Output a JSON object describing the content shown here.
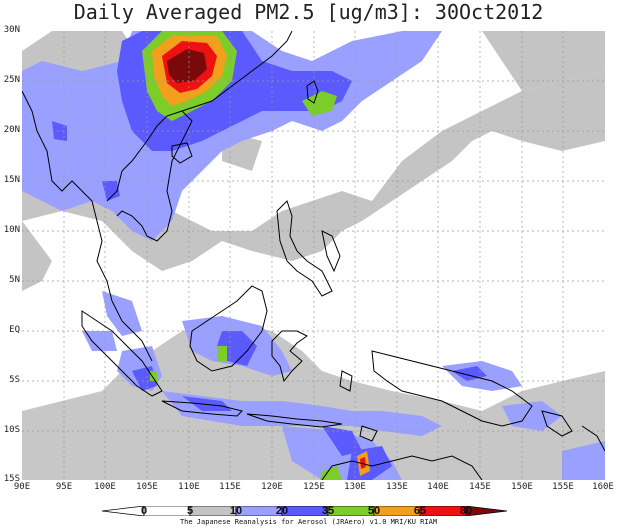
{
  "title": "Daily Averaged PM2.5 [ug/m3]: 30Oct2012",
  "lat_labels": [
    "30N",
    "25N",
    "20N",
    "15N",
    "10N",
    "5N",
    "EQ",
    "5S",
    "10S",
    "15S"
  ],
  "lon_labels": [
    "90E",
    "95E",
    "100E",
    "105E",
    "110E",
    "115E",
    "120E",
    "125E",
    "130E",
    "135E",
    "140E",
    "145E",
    "150E",
    "155E",
    "160E"
  ],
  "colorbar": {
    "levels": [
      "0",
      "5",
      "10",
      "20",
      "35",
      "50",
      "65",
      "80"
    ],
    "colors": [
      "#ffffff",
      "#c4c4c4",
      "#9aa0ff",
      "#5a5aff",
      "#7ccc2a",
      "#f2a01c",
      "#ee1111",
      "#7a0a0a"
    ]
  },
  "credit": "The Japanese Reanalysis for Aerosol (JRAero) v1.0 MRI/KU RIAM"
}
